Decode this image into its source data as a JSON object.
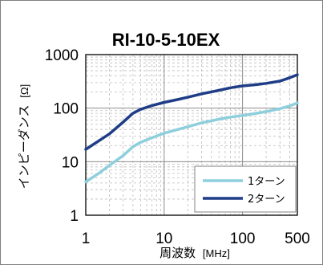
{
  "chart_data": {
    "type": "line",
    "title": "RI-10-5-10EX",
    "xlabel": "周波数",
    "xunit": "[MHz]",
    "ylabel": "インピーダンス",
    "yunit": "[Ω]",
    "x_scale": "log",
    "y_scale": "log",
    "xlim": [
      1,
      500
    ],
    "ylim": [
      1,
      1000
    ],
    "x_ticks": [
      {
        "value": 1,
        "label": "1"
      },
      {
        "value": 10,
        "label": "10"
      },
      {
        "value": 100,
        "label": "100"
      },
      {
        "value": 500,
        "label": "500"
      }
    ],
    "y_ticks": [
      {
        "value": 1,
        "label": "1"
      },
      {
        "value": 10,
        "label": "10"
      },
      {
        "value": 100,
        "label": "100"
      },
      {
        "value": 1000,
        "label": "1000"
      }
    ],
    "grid": true,
    "legend_position": "bottom-right",
    "series": [
      {
        "name": "1ターン",
        "color": "#8ecfdd",
        "points": [
          [
            1,
            4.2
          ],
          [
            1.5,
            6.2
          ],
          [
            2,
            8.5
          ],
          [
            3,
            13
          ],
          [
            4,
            19
          ],
          [
            5,
            23
          ],
          [
            7,
            28
          ],
          [
            10,
            34
          ],
          [
            15,
            40
          ],
          [
            20,
            45
          ],
          [
            30,
            53
          ],
          [
            50,
            62
          ],
          [
            70,
            68
          ],
          [
            100,
            73
          ],
          [
            150,
            80
          ],
          [
            200,
            86
          ],
          [
            300,
            98
          ],
          [
            400,
            110
          ],
          [
            500,
            125
          ]
        ]
      },
      {
        "name": "2ターン",
        "color": "#1f3d87",
        "points": [
          [
            1,
            17
          ],
          [
            1.5,
            25
          ],
          [
            2,
            33
          ],
          [
            3,
            55
          ],
          [
            4,
            80
          ],
          [
            5,
            95
          ],
          [
            7,
            112
          ],
          [
            10,
            128
          ],
          [
            15,
            145
          ],
          [
            20,
            160
          ],
          [
            30,
            185
          ],
          [
            50,
            215
          ],
          [
            70,
            240
          ],
          [
            100,
            260
          ],
          [
            150,
            275
          ],
          [
            200,
            290
          ],
          [
            300,
            320
          ],
          [
            400,
            370
          ],
          [
            500,
            420
          ]
        ]
      }
    ]
  }
}
